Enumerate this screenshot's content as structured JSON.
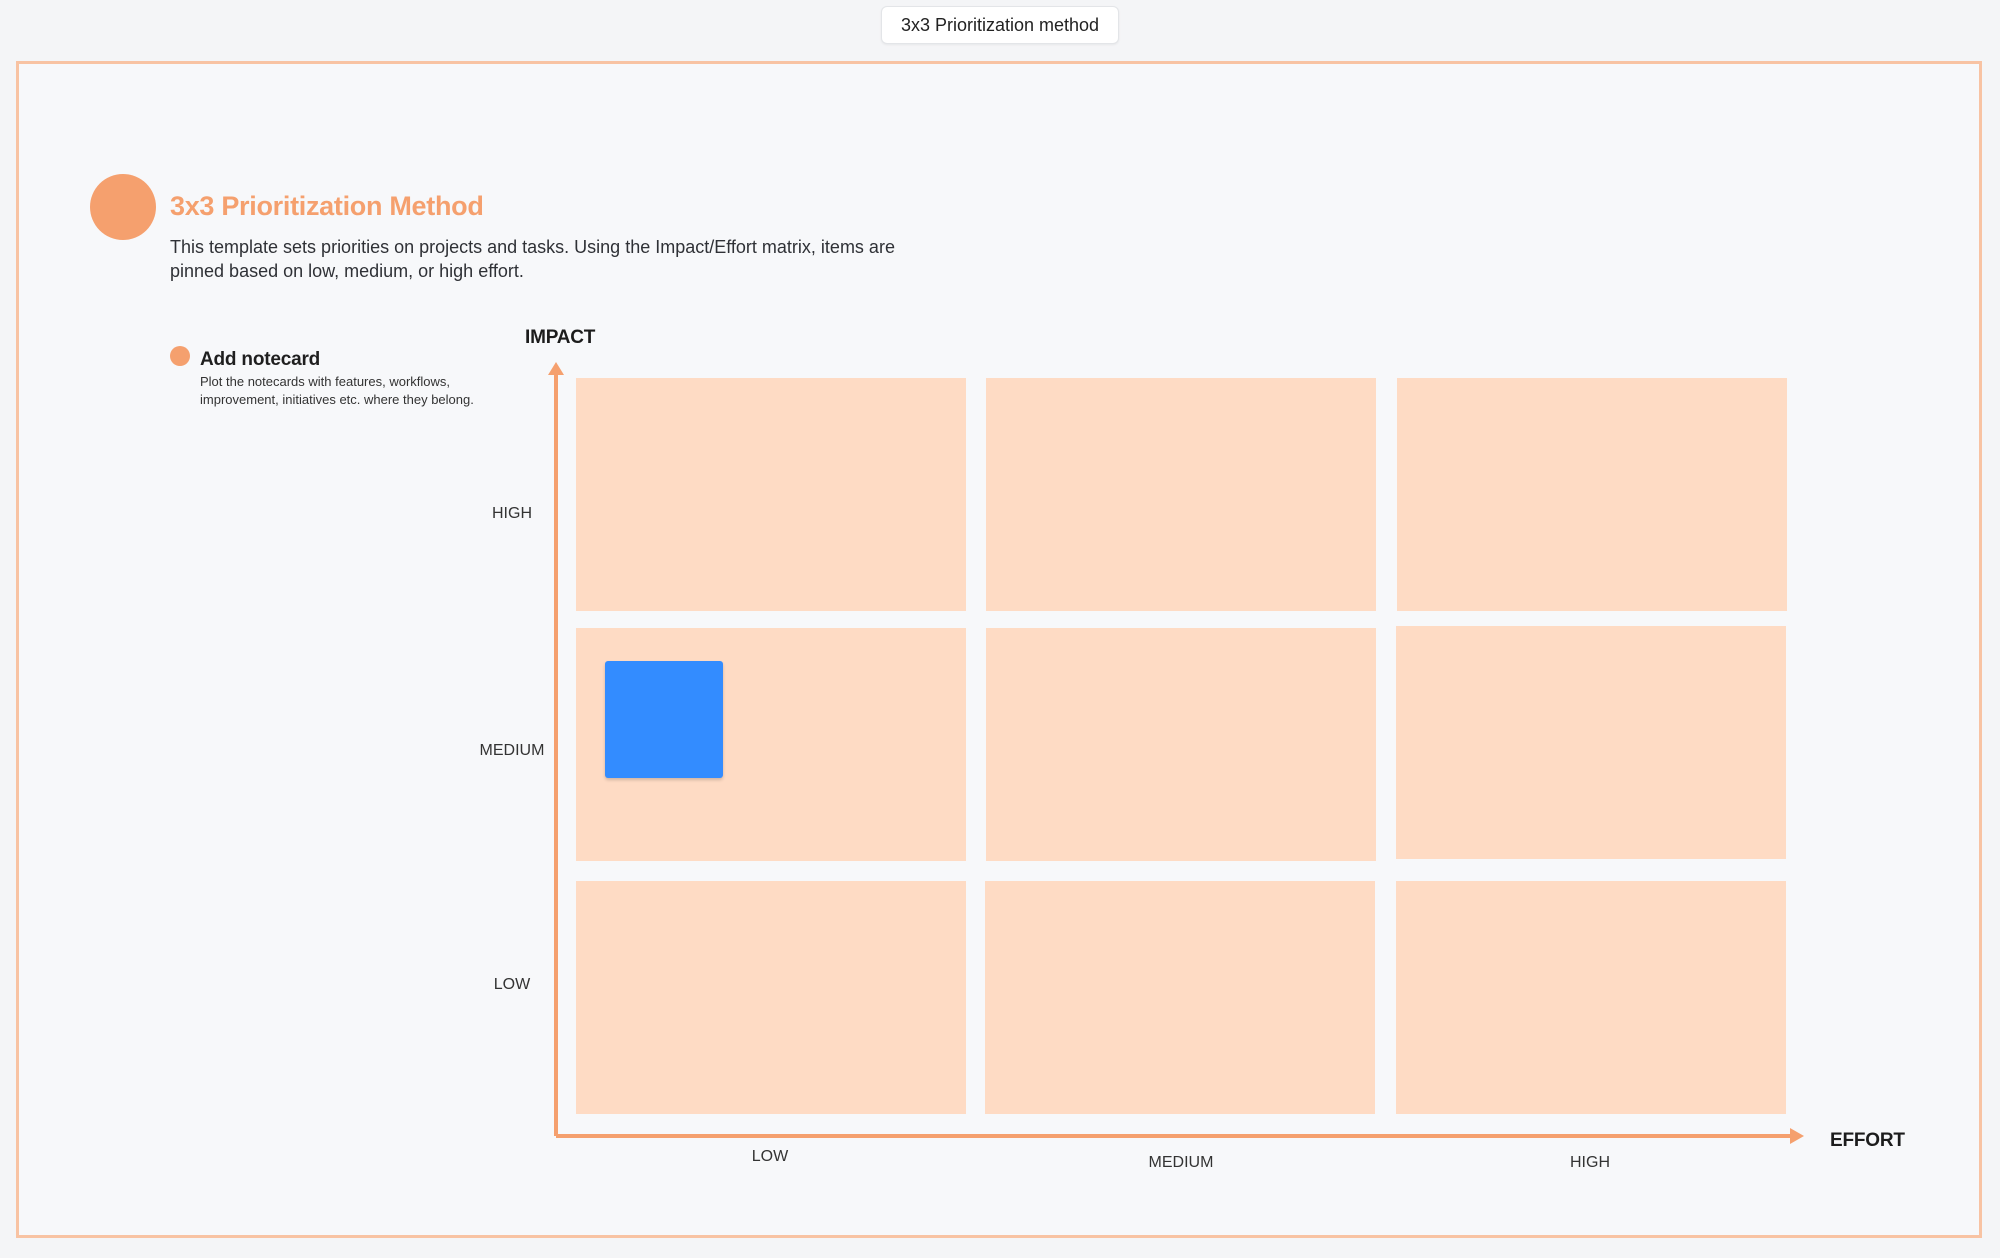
{
  "frame": {
    "label": "3x3 Prioritization method"
  },
  "header": {
    "title": "3x3 Prioritization Method",
    "description": "This template sets priorities on projects and tasks. Using the Impact/Effort matrix, items are pinned based on low, medium, or high effort."
  },
  "instruction": {
    "title": "Add notecard",
    "description": "Plot the notecards with features, workflows, improvement, initiatives etc. where they belong."
  },
  "matrix": {
    "y_axis": {
      "label": "IMPACT",
      "ticks": [
        "HIGH",
        "MEDIUM",
        "LOW"
      ]
    },
    "x_axis": {
      "label": "EFFORT",
      "ticks": [
        "LOW",
        "MEDIUM",
        "HIGH"
      ]
    },
    "notecards": [
      {
        "impact": "MEDIUM",
        "effort": "LOW",
        "color": "#338cff"
      }
    ]
  },
  "colors": {
    "accent": "#f5a06e",
    "cell": "#fedbc4",
    "frame_border": "#f8c3a3",
    "notecard": "#338cff"
  }
}
